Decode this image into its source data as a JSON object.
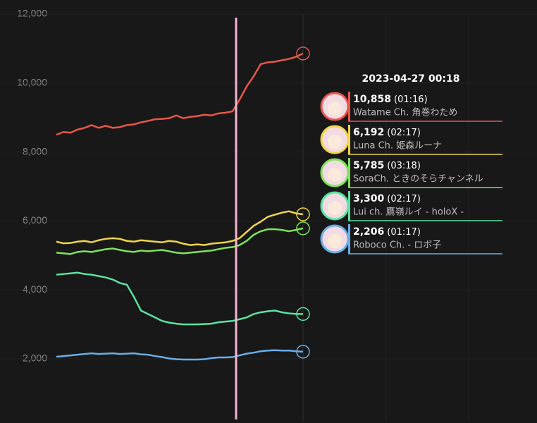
{
  "chart_data": {
    "type": "line",
    "categories": [
      null,
      null,
      null,
      null,
      null,
      null,
      null,
      null,
      null,
      null,
      null,
      null,
      null,
      null,
      null,
      null,
      null,
      null,
      null,
      null,
      null,
      null,
      null,
      null,
      null,
      null,
      null,
      null,
      null,
      null,
      null,
      null,
      null,
      null,
      null,
      null
    ],
    "ylim": [
      200,
      12000
    ],
    "yticks": [
      {
        "value": 2000,
        "label": "2,000"
      },
      {
        "value": 4000,
        "label": "4,000"
      },
      {
        "value": 6000,
        "label": "6,000"
      },
      {
        "value": 8000,
        "label": "8,000"
      },
      {
        "value": 10000,
        "label": "10,000"
      },
      {
        "value": 12000,
        "label": "12,000"
      }
    ],
    "grid": true,
    "series": [
      {
        "name": "Watame Ch. 角巻わため",
        "color": "#e8574c",
        "values": [
          8500,
          8580,
          8560,
          8650,
          8700,
          8780,
          8700,
          8760,
          8700,
          8720,
          8780,
          8800,
          8860,
          8900,
          8950,
          8960,
          8980,
          9060,
          8980,
          9020,
          9040,
          9080,
          9060,
          9120,
          9140,
          9180,
          9520,
          9900,
          10200,
          10550,
          10600,
          10620,
          10660,
          10700,
          10760,
          10858
        ]
      },
      {
        "name": "Luna Ch. 姫森ルーナ",
        "color": "#f0d54a",
        "values": [
          5400,
          5350,
          5360,
          5400,
          5420,
          5380,
          5440,
          5480,
          5500,
          5480,
          5420,
          5400,
          5440,
          5420,
          5400,
          5380,
          5420,
          5400,
          5340,
          5300,
          5320,
          5300,
          5340,
          5360,
          5380,
          5420,
          5500,
          5680,
          5860,
          5980,
          6120,
          6180,
          6240,
          6280,
          6220,
          6192
        ]
      },
      {
        "name": "SoraCh. ときのそらチャンネル",
        "color": "#7ee35a",
        "values": [
          5080,
          5060,
          5040,
          5100,
          5120,
          5100,
          5140,
          5180,
          5200,
          5160,
          5120,
          5100,
          5140,
          5120,
          5140,
          5160,
          5120,
          5080,
          5060,
          5080,
          5100,
          5120,
          5140,
          5180,
          5220,
          5240,
          5300,
          5420,
          5600,
          5700,
          5760,
          5760,
          5740,
          5700,
          5740,
          5785
        ]
      },
      {
        "name": "Lui ch. 鷹嶺ルイ - holoX -",
        "color": "#5ce3a0",
        "values": [
          4440,
          4460,
          4480,
          4500,
          4460,
          4440,
          4400,
          4360,
          4300,
          4200,
          4150,
          3800,
          3400,
          3300,
          3200,
          3100,
          3050,
          3020,
          3000,
          3000,
          3000,
          3010,
          3020,
          3060,
          3080,
          3100,
          3150,
          3200,
          3300,
          3350,
          3380,
          3400,
          3350,
          3320,
          3300,
          3300
        ]
      },
      {
        "name": "Roboco Ch. - ロボ子",
        "color": "#6aaee8",
        "values": [
          2060,
          2080,
          2100,
          2120,
          2140,
          2160,
          2140,
          2150,
          2160,
          2140,
          2150,
          2160,
          2130,
          2120,
          2080,
          2050,
          2010,
          1990,
          1980,
          1980,
          1980,
          1990,
          2020,
          2040,
          2040,
          2050,
          2100,
          2150,
          2180,
          2220,
          2240,
          2250,
          2240,
          2240,
          2220,
          2206
        ]
      }
    ]
  },
  "tooltip": {
    "title": "2023-04-27 00:18",
    "items": [
      {
        "value": "10,858",
        "time": "(01:16)"
      },
      {
        "value": "6,192",
        "time": "(02:17)"
      },
      {
        "value": "5,785",
        "time": "(03:18)"
      },
      {
        "value": "3,300",
        "time": "(02:17)"
      },
      {
        "value": "2,206",
        "time": "(01:17)"
      }
    ]
  }
}
